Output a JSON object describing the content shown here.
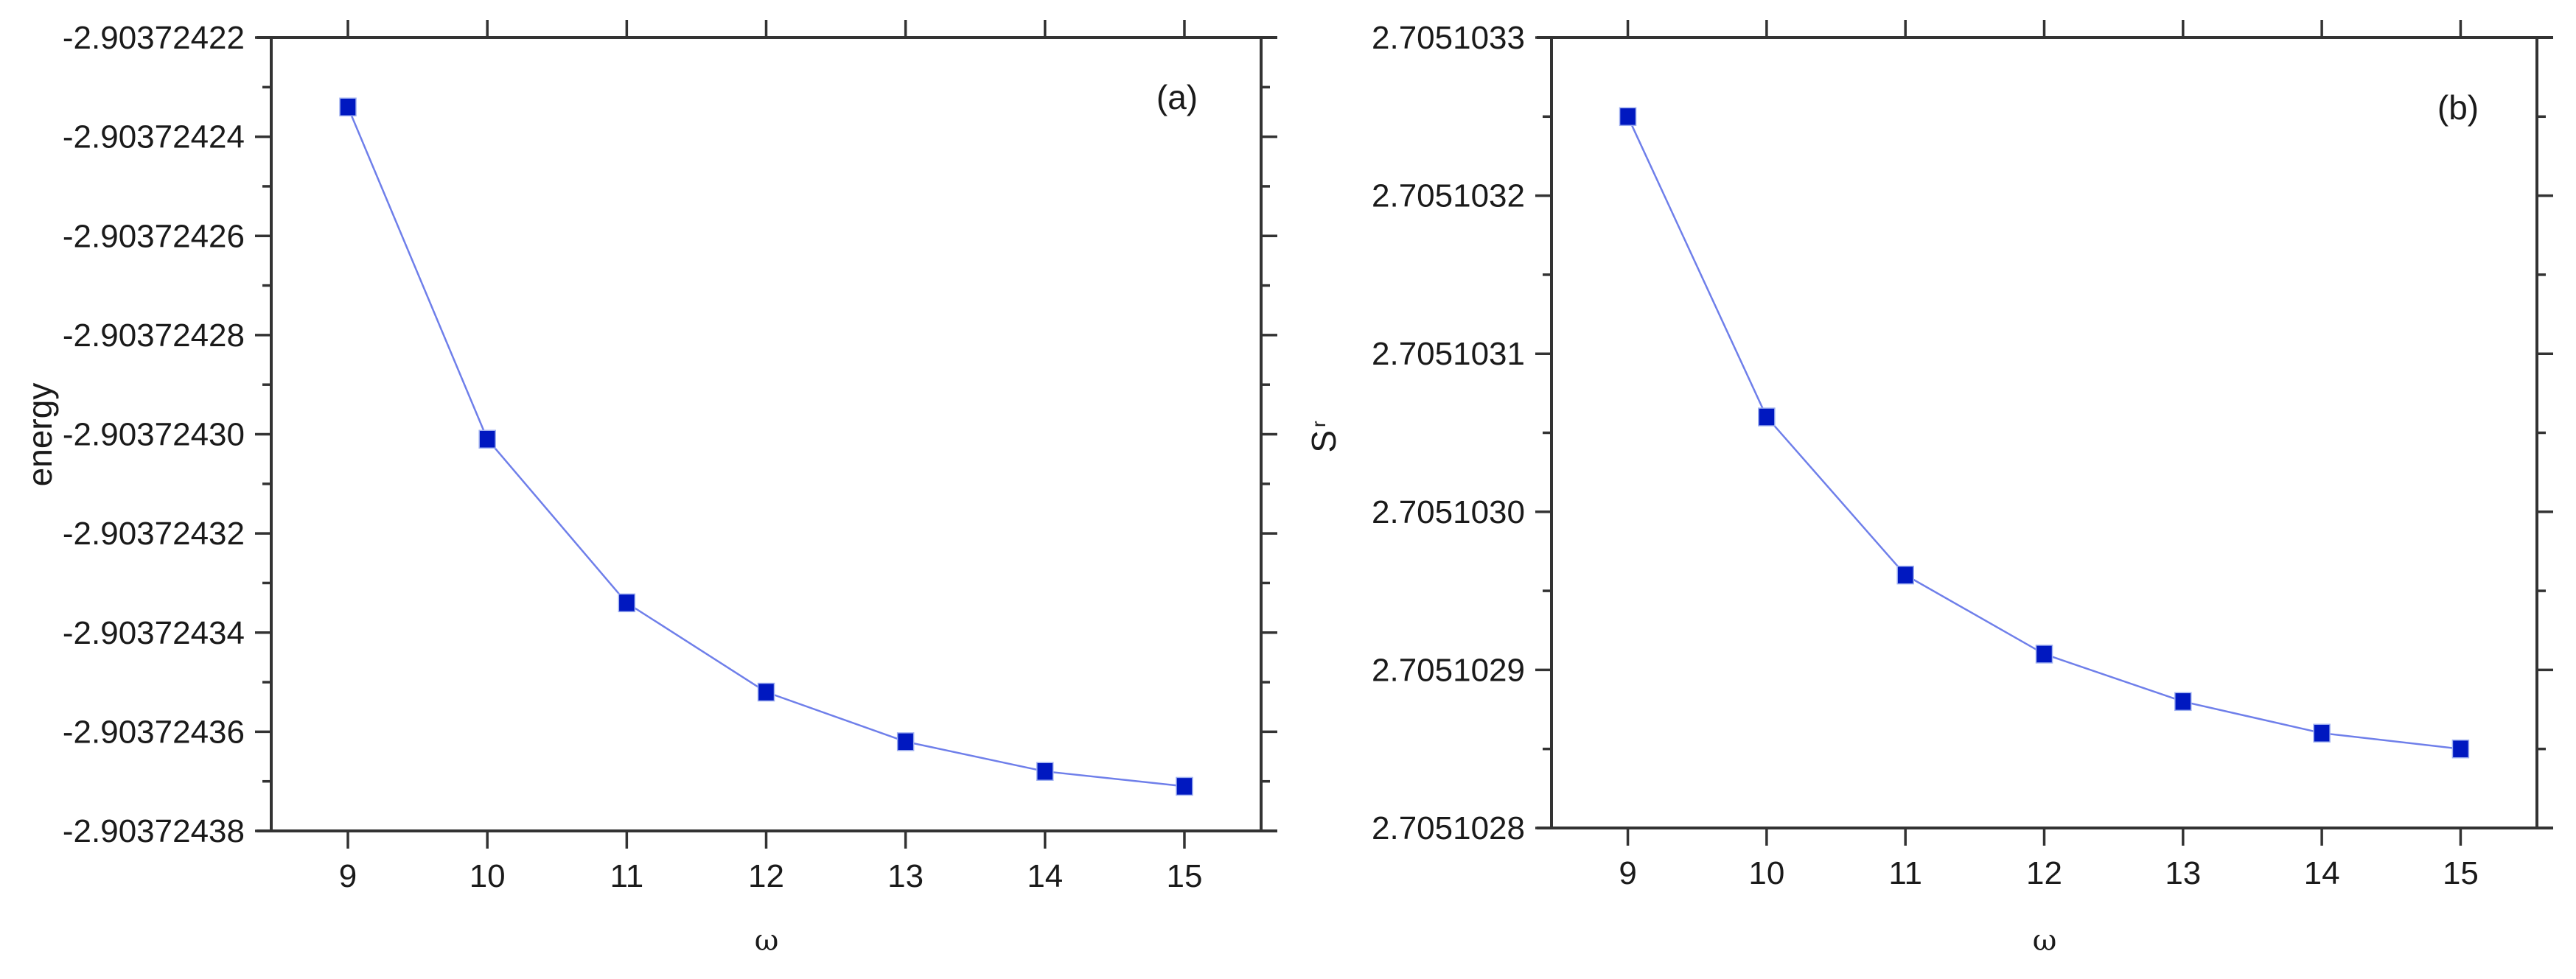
{
  "figure": {
    "panels": [
      {
        "id": "a",
        "panel_label": "(a)",
        "ylabel": "energy",
        "ylabel_subscript": "",
        "xlabel": "ω"
      },
      {
        "id": "b",
        "panel_label": "(b)",
        "ylabel": "S",
        "ylabel_subscript": "r",
        "xlabel": "ω"
      }
    ]
  },
  "chart_data": [
    {
      "type": "line",
      "title": "(a)",
      "xlabel": "ω",
      "ylabel": "energy",
      "x": [
        9,
        10,
        11,
        12,
        13,
        14,
        15
      ],
      "series": [
        {
          "name": "energy",
          "values": [
            -2.903724234,
            -2.903724301,
            -2.903724334,
            -2.903724352,
            -2.903724362,
            -2.903724368,
            -2.903724371
          ]
        }
      ],
      "xlim": [
        8.45,
        15.55
      ],
      "ylim": [
        -2.90372438,
        -2.90372422
      ],
      "xticks": [
        "9",
        "10",
        "11",
        "12",
        "13",
        "14",
        "15"
      ],
      "yticks": [
        "-2.90372422",
        "-2.90372424",
        "-2.90372426",
        "-2.90372428",
        "-2.90372430",
        "-2.90372432",
        "-2.90372434",
        "-2.90372436",
        "-2.90372438"
      ],
      "ytick_values": [
        -2.90372422,
        -2.90372424,
        -2.90372426,
        -2.90372428,
        -2.9037243,
        -2.90372432,
        -2.90372434,
        -2.90372436,
        -2.90372438
      ],
      "marker": "square",
      "marker_color": "#0018c0",
      "line_color": "#6f7fea",
      "grid": false,
      "legend": null
    },
    {
      "type": "line",
      "title": "(b)",
      "xlabel": "ω",
      "ylabel": "S_r",
      "x": [
        9,
        10,
        11,
        12,
        13,
        14,
        15
      ],
      "series": [
        {
          "name": "S_r",
          "values": [
            2.70510325,
            2.70510306,
            2.70510296,
            2.70510291,
            2.70510288,
            2.70510286,
            2.70510285
          ]
        }
      ],
      "xlim": [
        8.45,
        15.55
      ],
      "ylim": [
        2.7051028,
        2.7051033
      ],
      "xticks": [
        "9",
        "10",
        "11",
        "12",
        "13",
        "14",
        "15"
      ],
      "yticks": [
        "2.7051028",
        "2.7051029",
        "2.7051030",
        "2.7051031",
        "2.7051032",
        "2.7051033"
      ],
      "ytick_values": [
        2.7051028,
        2.7051029,
        2.705103,
        2.7051031,
        2.7051032,
        2.7051033
      ],
      "marker": "square",
      "marker_color": "#0018c0",
      "line_color": "#6f7fea",
      "grid": false,
      "legend": null
    }
  ]
}
